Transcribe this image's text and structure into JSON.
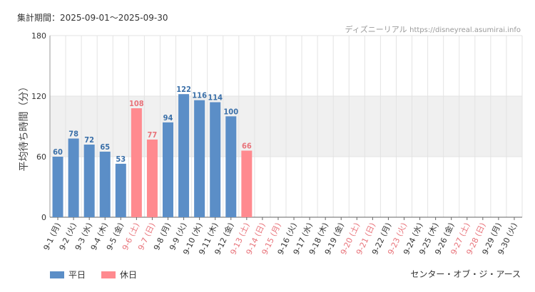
{
  "header": {
    "period": "集計期間：2025-09-01～2025-09-30",
    "site_name": "ディズニーリアル",
    "site_url": "https://disneyreal.asumirai.info"
  },
  "legend": {
    "weekday_label": "平日",
    "holiday_label": "休日"
  },
  "footer": {
    "attraction": "センター・オブ・ジ・アース"
  },
  "colors": {
    "weekday": "#5b8ec7",
    "holiday": "#ff8a8f",
    "weekday_text": "#3a6fa8",
    "holiday_text": "#e8737a",
    "band": "#f0f0f0",
    "grid": "#e3e3e3"
  },
  "chart_data": {
    "type": "bar",
    "ylabel": "平均待ち時間（分）",
    "ylim": [
      0,
      180
    ],
    "yticks": [
      0,
      60,
      120,
      180
    ],
    "band": [
      60,
      120
    ],
    "categories": [
      "9-1 (月)",
      "9-2 (火)",
      "9-3 (水)",
      "9-4 (木)",
      "9-5 (金)",
      "9-6 (土)",
      "9-7 (日)",
      "9-8 (月)",
      "9-9 (火)",
      "9-10 (水)",
      "9-11 (木)",
      "9-12 (金)",
      "9-13 (土)",
      "9-14 (日)",
      "9-15 (月)",
      "9-16 (火)",
      "9-17 (水)",
      "9-18 (木)",
      "9-19 (金)",
      "9-20 (土)",
      "9-21 (日)",
      "9-22 (月)",
      "9-23 (火)",
      "9-24 (水)",
      "9-25 (木)",
      "9-26 (金)",
      "9-27 (土)",
      "9-28 (日)",
      "9-29 (月)",
      "9-30 (火)"
    ],
    "day_type": [
      "平日",
      "平日",
      "平日",
      "平日",
      "平日",
      "休日",
      "休日",
      "平日",
      "平日",
      "平日",
      "平日",
      "平日",
      "休日",
      "休日",
      "休日",
      "平日",
      "平日",
      "平日",
      "平日",
      "休日",
      "休日",
      "平日",
      "休日",
      "平日",
      "平日",
      "平日",
      "休日",
      "休日",
      "平日",
      "平日"
    ],
    "values": [
      60,
      78,
      72,
      65,
      53,
      108,
      77,
      94,
      122,
      116,
      114,
      100,
      66,
      null,
      null,
      null,
      null,
      null,
      null,
      null,
      null,
      null,
      null,
      null,
      null,
      null,
      null,
      null,
      null,
      null
    ]
  }
}
